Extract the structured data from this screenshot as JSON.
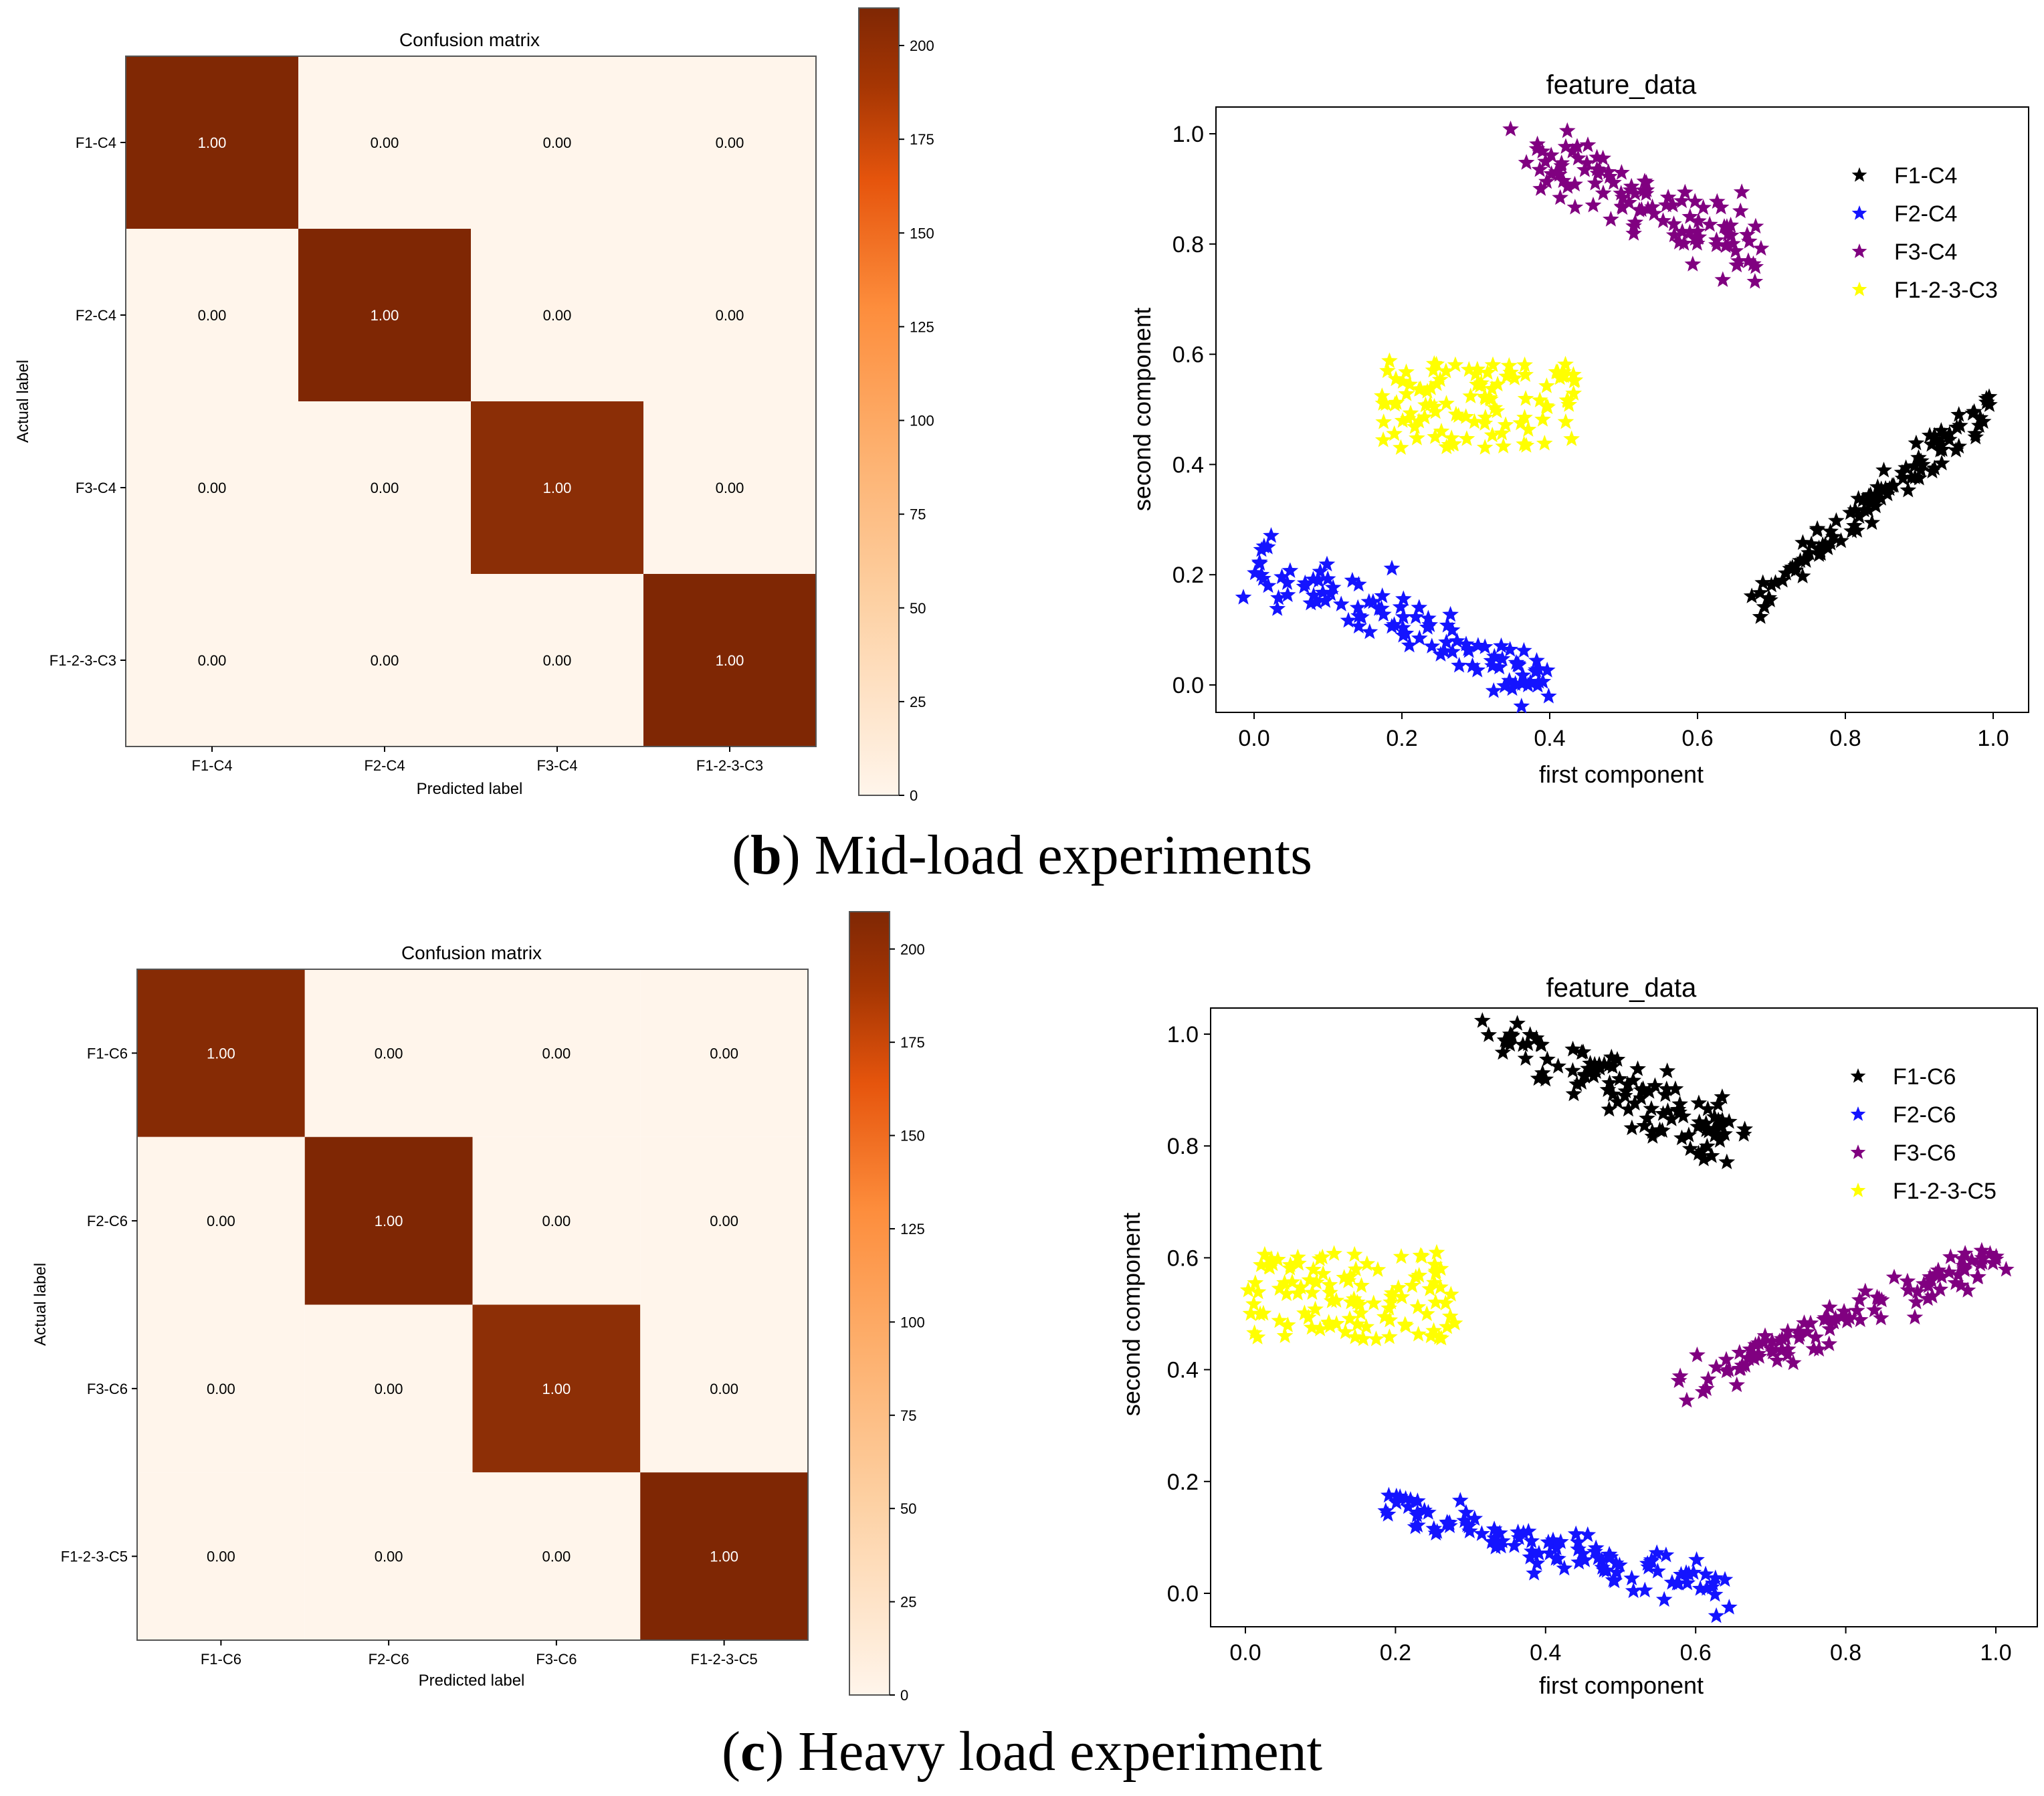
{
  "figure": {
    "captions": [
      {
        "letter": "b",
        "open": "(",
        "close": ")",
        "text": " Mid-load experiments"
      },
      {
        "letter": "c",
        "open": "(",
        "close": ")",
        "text": " Heavy load experiment"
      }
    ]
  },
  "chart_data": [
    {
      "type": "heatmap",
      "panel": "b",
      "title": "Confusion matrix",
      "xlabel": "Predicted label",
      "ylabel": "Actual label",
      "x_categories": [
        "F1-C4",
        "F2-C4",
        "F3-C4",
        "F1-2-3-C3"
      ],
      "y_categories": [
        "F1-C4",
        "F2-C4",
        "F3-C4",
        "F1-2-3-C3"
      ],
      "matrix": [
        [
          1.0,
          0.0,
          0.0,
          0.0
        ],
        [
          0.0,
          1.0,
          0.0,
          0.0
        ],
        [
          0.0,
          0.0,
          1.0,
          0.0
        ],
        [
          0.0,
          0.0,
          0.0,
          1.0
        ]
      ],
      "cell_labels": [
        [
          "1.00",
          "0.00",
          "0.00",
          "0.00"
        ],
        [
          "0.00",
          "1.00",
          "0.00",
          "0.00"
        ],
        [
          "0.00",
          "0.00",
          "1.00",
          "0.00"
        ],
        [
          "0.00",
          "0.00",
          "0.00",
          "1.00"
        ]
      ],
      "counts_diagonal": [
        209,
        220,
        201,
        210
      ],
      "colorbar": {
        "range": [
          0,
          210
        ],
        "ticks": [
          0,
          25,
          50,
          75,
          100,
          125,
          150,
          175,
          200
        ]
      },
      "colors": {
        "low": "#fff5eb",
        "high": "#7f2704",
        "mid": "#f16913"
      }
    },
    {
      "type": "scatter",
      "panel": "b",
      "title": "feature_data",
      "xlabel": "first component",
      "ylabel": "second component",
      "xlim": [
        -0.05,
        1.05
      ],
      "ylim": [
        -0.05,
        1.05
      ],
      "xticks": [
        0.0,
        0.2,
        0.4,
        0.6,
        0.8,
        1.0
      ],
      "yticks": [
        0.0,
        0.2,
        0.4,
        0.6,
        0.8,
        1.0
      ],
      "tick_labels": [
        "0.0",
        "0.2",
        "0.4",
        "0.6",
        "0.8",
        "1.0"
      ],
      "legend_position": "top-right",
      "series": [
        {
          "name": "F1-C4",
          "color": "#000000",
          "count": 110,
          "x_range": [
            0.67,
            1.0
          ],
          "y_range": [
            0.15,
            0.51
          ],
          "shape": "line",
          "spread": 0.018
        },
        {
          "name": "F2-C4",
          "color": "#1414ff",
          "count": 110,
          "x_range": [
            0.0,
            0.4
          ],
          "y_range": [
            0.22,
            0.0
          ],
          "shape": "line",
          "spread": 0.025
        },
        {
          "name": "F3-C4",
          "color": "#800080",
          "count": 110,
          "x_range": [
            0.37,
            0.68
          ],
          "y_range": [
            0.98,
            0.78
          ],
          "shape": "line",
          "spread": 0.03
        },
        {
          "name": "F1-2-3-C3",
          "color": "#ffff00",
          "count": 110,
          "x_range": [
            0.17,
            0.44
          ],
          "y_range": [
            0.43,
            0.59
          ],
          "shape": "blob",
          "spread": 0
        }
      ]
    },
    {
      "type": "heatmap",
      "panel": "c",
      "title": "Confusion matrix",
      "xlabel": "Predicted label",
      "ylabel": "Actual label",
      "x_categories": [
        "F1-C6",
        "F2-C6",
        "F3-C6",
        "F1-2-3-C5"
      ],
      "y_categories": [
        "F1-C6",
        "F2-C6",
        "F3-C6",
        "F1-2-3-C5"
      ],
      "matrix": [
        [
          1.0,
          0.0,
          0.0,
          0.0
        ],
        [
          0.0,
          1.0,
          0.0,
          0.0
        ],
        [
          0.0,
          0.0,
          1.0,
          0.0
        ],
        [
          0.0,
          0.0,
          0.0,
          1.0
        ]
      ],
      "cell_labels": [
        [
          "1.00",
          "0.00",
          "0.00",
          "0.00"
        ],
        [
          "0.00",
          "1.00",
          "0.00",
          "0.00"
        ],
        [
          "0.00",
          "0.00",
          "1.00",
          "0.00"
        ],
        [
          "0.00",
          "0.00",
          "0.00",
          "1.00"
        ]
      ],
      "counts_diagonal": [
        205,
        218,
        200,
        210
      ],
      "colorbar": {
        "range": [
          0,
          210
        ],
        "ticks": [
          0,
          25,
          50,
          75,
          100,
          125,
          150,
          175,
          200
        ]
      },
      "colors": {
        "low": "#fff5eb",
        "high": "#7f2704",
        "mid": "#f16913"
      }
    },
    {
      "type": "scatter",
      "panel": "c",
      "title": "feature_data",
      "xlabel": "first component",
      "ylabel": "second component",
      "xlim": [
        -0.05,
        1.05
      ],
      "ylim": [
        -0.05,
        1.05
      ],
      "xticks": [
        0.0,
        0.2,
        0.4,
        0.6,
        0.8,
        1.0
      ],
      "yticks": [
        0.0,
        0.2,
        0.4,
        0.6,
        0.8,
        1.0
      ],
      "tick_labels": [
        "0.0",
        "0.2",
        "0.4",
        "0.6",
        "0.8",
        "1.0"
      ],
      "legend_position": "top-right",
      "series": [
        {
          "name": "F1-C6",
          "color": "#000000",
          "count": 110,
          "x_range": [
            0.34,
            0.64
          ],
          "y_range": [
            0.99,
            0.82
          ],
          "shape": "line",
          "spread": 0.03
        },
        {
          "name": "F2-C6",
          "color": "#1414ff",
          "count": 110,
          "x_range": [
            0.18,
            0.64
          ],
          "y_range": [
            0.16,
            0.01
          ],
          "shape": "line",
          "spread": 0.02
        },
        {
          "name": "F3-C6",
          "color": "#800080",
          "count": 110,
          "x_range": [
            0.58,
            1.0
          ],
          "y_range": [
            0.37,
            0.6
          ],
          "shape": "line",
          "spread": 0.018
        },
        {
          "name": "F1-2-3-C5",
          "color": "#ffff00",
          "count": 110,
          "x_range": [
            0.0,
            0.28
          ],
          "y_range": [
            0.45,
            0.61
          ],
          "shape": "blob",
          "spread": 0
        }
      ]
    }
  ]
}
